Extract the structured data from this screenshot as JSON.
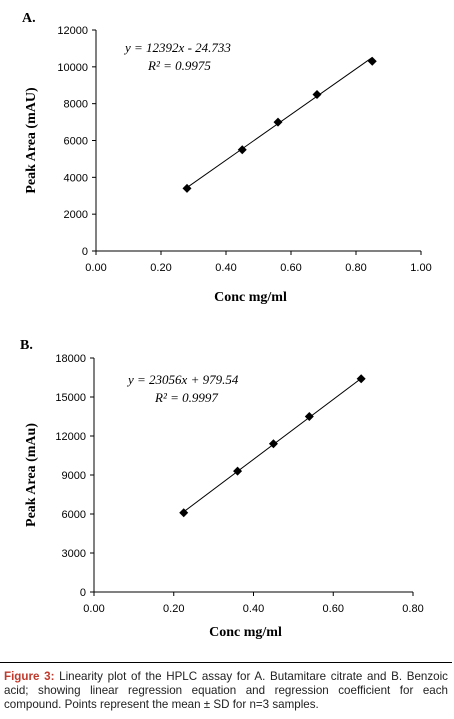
{
  "chart_data": [
    {
      "type": "scatter",
      "panel_label": "A.",
      "x": [
        0.28,
        0.45,
        0.56,
        0.68,
        0.85
      ],
      "y": [
        3400,
        5500,
        7000,
        8500,
        10300
      ],
      "xlabel": "Conc mg/ml",
      "ylabel": "Peak Area (mAU)",
      "xlim": [
        0,
        1.0
      ],
      "ylim": [
        0,
        12000
      ],
      "xticks": [
        "0.00",
        "0.20",
        "0.40",
        "0.60",
        "0.80",
        "1.00"
      ],
      "yticks": [
        "0",
        "2000",
        "4000",
        "6000",
        "8000",
        "10000",
        "12000"
      ],
      "equation": "y = 12392x - 24.733",
      "r_squared": "R² = 0.9975",
      "trendline": {
        "slope": 12392,
        "intercept": -24.733
      },
      "grid": false
    },
    {
      "type": "scatter",
      "panel_label": "B.",
      "x": [
        0.225,
        0.36,
        0.45,
        0.54,
        0.67
      ],
      "y": [
        6100,
        9300,
        11400,
        13500,
        16400
      ],
      "xlabel": "Conc mg/ml",
      "ylabel": "Peak Area (mAu)",
      "xlim": [
        0,
        0.8
      ],
      "ylim": [
        0,
        18000
      ],
      "xticks": [
        "0.00",
        "0.20",
        "0.40",
        "0.60",
        "0.80"
      ],
      "yticks": [
        "0",
        "3000",
        "6000",
        "9000",
        "12000",
        "15000",
        "18000"
      ],
      "equation": "y = 23056x + 979.54",
      "r_squared": "R² = 0.9997",
      "trendline": {
        "slope": 23056,
        "intercept": 979.54
      },
      "grid": false
    }
  ],
  "caption": {
    "label": "Figure 3:",
    "text": " Linearity plot of the HPLC assay for A. Butamitare citrate and B. Benzoic acid; showing linear regression equation and regression coefficient for each compound. Points represent the mean ± SD for n=3 samples."
  }
}
